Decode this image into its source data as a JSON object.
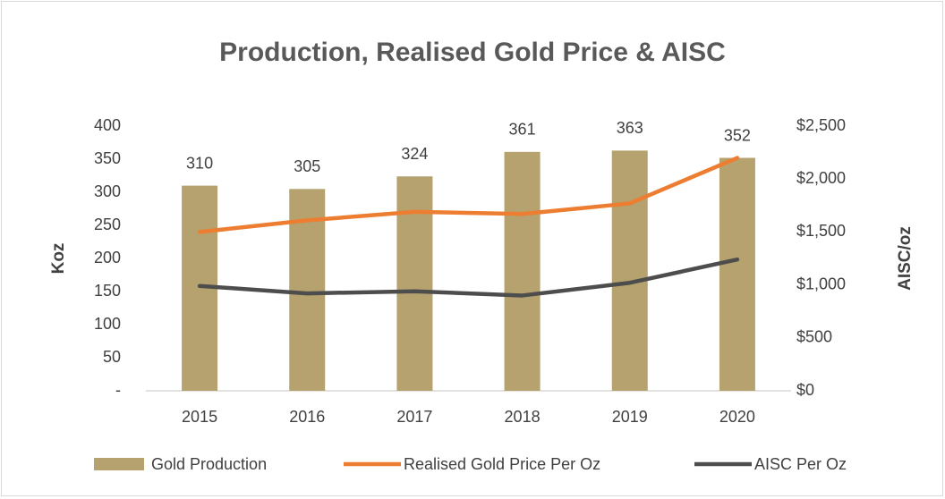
{
  "chart_data": {
    "type": "bar",
    "title": "Production, Realised Gold Price & AISC",
    "ylabel": "Koz",
    "y2label": "AISC/oz",
    "categories": [
      "2015",
      "2016",
      "2017",
      "2018",
      "2019",
      "2020"
    ],
    "series": [
      {
        "name": "Gold Production",
        "type": "bar",
        "color": "#b5a26e",
        "values": [
          310,
          305,
          324,
          361,
          363,
          352
        ]
      },
      {
        "name": "Realised Gold Price  Per Oz",
        "type": "line",
        "axis": "y2",
        "color": "#ed7d31",
        "values": [
          1500,
          1610,
          1690,
          1670,
          1770,
          2200
        ]
      },
      {
        "name": "AISC Per Oz",
        "type": "line",
        "axis": "y2",
        "color": "#4d4d4d",
        "values": [
          990,
          920,
          940,
          900,
          1020,
          1240
        ]
      }
    ],
    "ylim": [
      0,
      400
    ],
    "yticks": [
      {
        "value": 0,
        "label": "-"
      },
      50,
      100,
      150,
      200,
      250,
      300,
      350,
      400
    ],
    "y2lim": [
      0,
      2500
    ],
    "y2ticks": [
      {
        "value": 0,
        "label": "$0"
      },
      {
        "value": 500,
        "label": "$500"
      },
      {
        "value": 1000,
        "label": "$1,000"
      },
      {
        "value": 1500,
        "label": "$1,500"
      },
      {
        "value": 2000,
        "label": "$2,000"
      },
      {
        "value": 2500,
        "label": "$2,500"
      }
    ],
    "legend": "bottom"
  }
}
